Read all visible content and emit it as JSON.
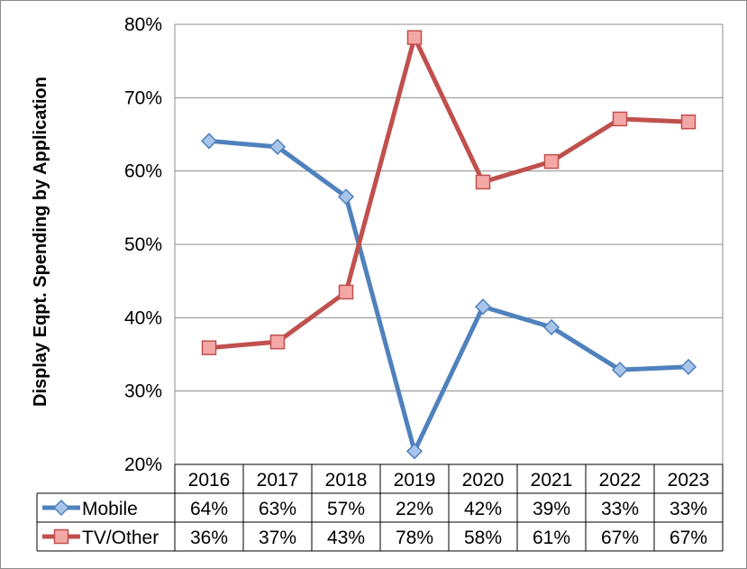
{
  "chart_data": {
    "type": "line",
    "ylabel": "Display  Eqpt. Spending by Application",
    "ylim": [
      0.2,
      0.8
    ],
    "yticks": [
      {
        "value": 0.2,
        "label": "20%"
      },
      {
        "value": 0.3,
        "label": "30%"
      },
      {
        "value": 0.4,
        "label": "40%"
      },
      {
        "value": 0.5,
        "label": "50%"
      },
      {
        "value": 0.6,
        "label": "60%"
      },
      {
        "value": 0.7,
        "label": "70%"
      },
      {
        "value": 0.8,
        "label": "80%"
      }
    ],
    "grid": true,
    "legend": "data-table-left",
    "categories": [
      "2016",
      "2017",
      "2018",
      "2019",
      "2020",
      "2021",
      "2022",
      "2023"
    ],
    "series": [
      {
        "name": "Mobile",
        "color": "#4f81bd",
        "marker": "diamond",
        "values": [
          0.641,
          0.633,
          0.565,
          0.218,
          0.415,
          0.387,
          0.329,
          0.333
        ],
        "labels": [
          "64%",
          "63%",
          "57%",
          "22%",
          "42%",
          "39%",
          "33%",
          "33%"
        ]
      },
      {
        "name": "TV/Other",
        "color": "#c0504d",
        "marker": "square",
        "values": [
          0.359,
          0.367,
          0.435,
          0.782,
          0.585,
          0.613,
          0.671,
          0.667
        ],
        "labels": [
          "36%",
          "37%",
          "43%",
          "78%",
          "58%",
          "61%",
          "67%",
          "67%"
        ]
      }
    ]
  }
}
